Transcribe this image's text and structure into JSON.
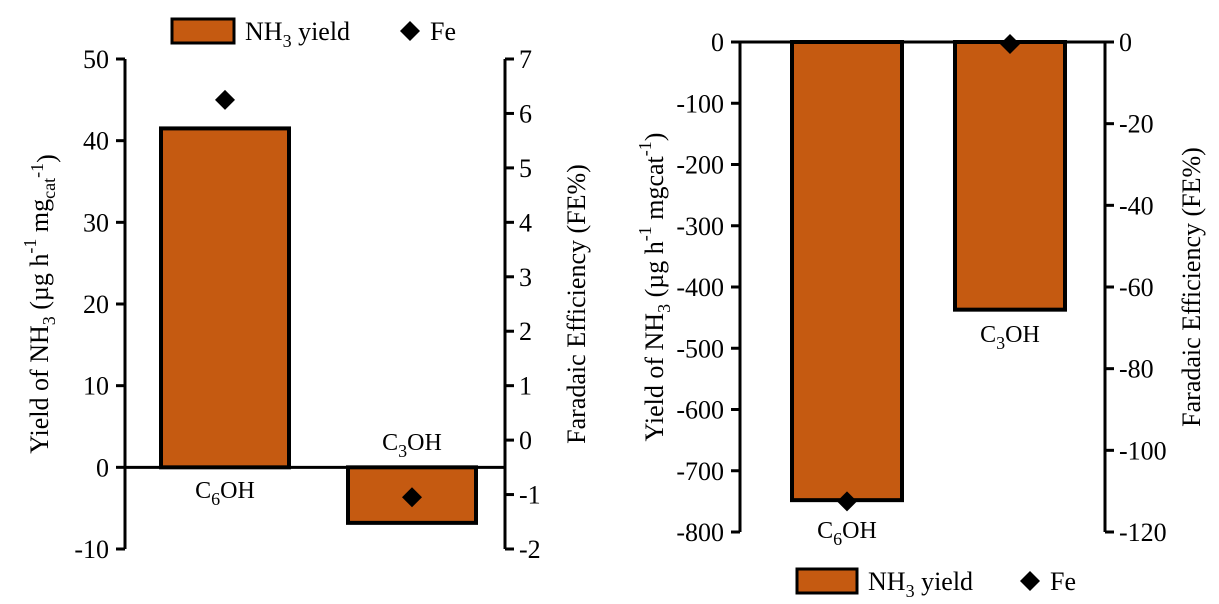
{
  "colors": {
    "bar_fill": "#C55A11",
    "bar_stroke": "#000000",
    "marker": "#000000"
  },
  "chart_data": [
    {
      "type": "bar",
      "categories": [
        "C6OH",
        "C3OH"
      ],
      "category_labels": [
        {
          "main": "C",
          "sub": "6",
          "rest": "OH"
        },
        {
          "main": "C",
          "sub": "3",
          "rest": "OH"
        }
      ],
      "series": [
        {
          "name": "NH3 yield",
          "type": "bar",
          "axis": "left",
          "values": [
            41.5,
            -6.8
          ]
        },
        {
          "name": "Fe",
          "type": "scatter",
          "marker": "diamond",
          "axis": "right",
          "values": [
            6.25,
            -1.05
          ]
        }
      ],
      "ylim": [
        -10,
        50
      ],
      "yticks": [
        -10,
        0,
        10,
        20,
        30,
        40,
        50
      ],
      "y2lim": [
        -2,
        7
      ],
      "y2ticks": [
        -2,
        -1,
        0,
        1,
        2,
        3,
        4,
        5,
        6,
        7
      ],
      "ylabel": {
        "prefix": "Yield of NH",
        "sub1": "3",
        "mid": " (µg h",
        "sup1": "-1",
        "mid2": " mg",
        "sub2": "cat",
        "sup2": "-1",
        "suffix": ")"
      },
      "y2label": "Faradaic Efficiency (FE%)",
      "legend": {
        "position": "top",
        "bar_label": {
          "main": "NH",
          "sub": "3",
          "rest": " yield"
        },
        "marker_label": "Fe"
      },
      "grid": false
    },
    {
      "type": "bar",
      "categories": [
        "C6OH",
        "C3OH"
      ],
      "category_labels": [
        {
          "main": "C",
          "sub": "6",
          "rest": "OH"
        },
        {
          "main": "C",
          "sub": "3",
          "rest": "OH"
        }
      ],
      "series": [
        {
          "name": "NH3 yield",
          "type": "bar",
          "axis": "left",
          "values": [
            -748,
            -437
          ]
        },
        {
          "name": "Fe",
          "type": "scatter",
          "marker": "diamond",
          "axis": "right",
          "values": [
            -112.5,
            -0.5
          ]
        }
      ],
      "ylim": [
        -800,
        0
      ],
      "yticks": [
        -800,
        -700,
        -600,
        -500,
        -400,
        -300,
        -200,
        -100,
        0
      ],
      "y2lim": [
        -120,
        0
      ],
      "y2ticks": [
        -120,
        -100,
        -80,
        -60,
        -40,
        -20,
        0
      ],
      "ylabel": {
        "prefix": "Yield of NH",
        "sub1": "3",
        "mid": " (µg h",
        "sup1": "-1",
        "mid2": " mgcat",
        "sub2": "",
        "sup2": "-1",
        "suffix": ")"
      },
      "y2label": "Faradaic Efficiency (FE%)",
      "legend": {
        "position": "bottom",
        "bar_label": {
          "main": "NH",
          "sub": "3",
          "rest": " yield"
        },
        "marker_label": "Fe"
      },
      "grid": false
    }
  ]
}
